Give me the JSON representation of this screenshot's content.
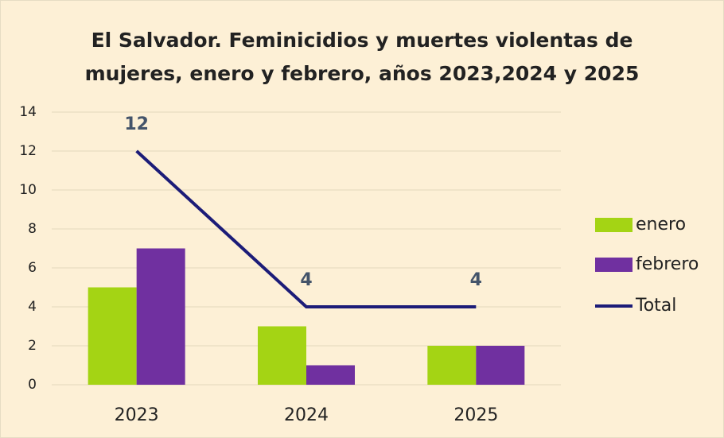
{
  "chart_data": {
    "type": "bar_line",
    "title": [
      "El Salvador. Feminicidios y muertes violentas de",
      "mujeres, enero y febrero, años 2023,2024 y 2025"
    ],
    "categories": [
      "2023",
      "2024",
      "2025"
    ],
    "series": [
      {
        "name": "enero",
        "color": "#a4d414",
        "type": "bar",
        "values": [
          5,
          3,
          2
        ]
      },
      {
        "name": "febrero",
        "color": "#7030a0",
        "type": "bar",
        "values": [
          7,
          1,
          2
        ]
      },
      {
        "name": "Total",
        "color": "#1c1c78",
        "type": "line",
        "values": [
          12,
          4,
          4
        ],
        "data_labels": true
      }
    ],
    "ylim": [
      0,
      14
    ],
    "yticks": [
      0,
      2,
      4,
      6,
      8,
      10,
      12,
      14
    ],
    "grid": true,
    "legend": "right"
  }
}
